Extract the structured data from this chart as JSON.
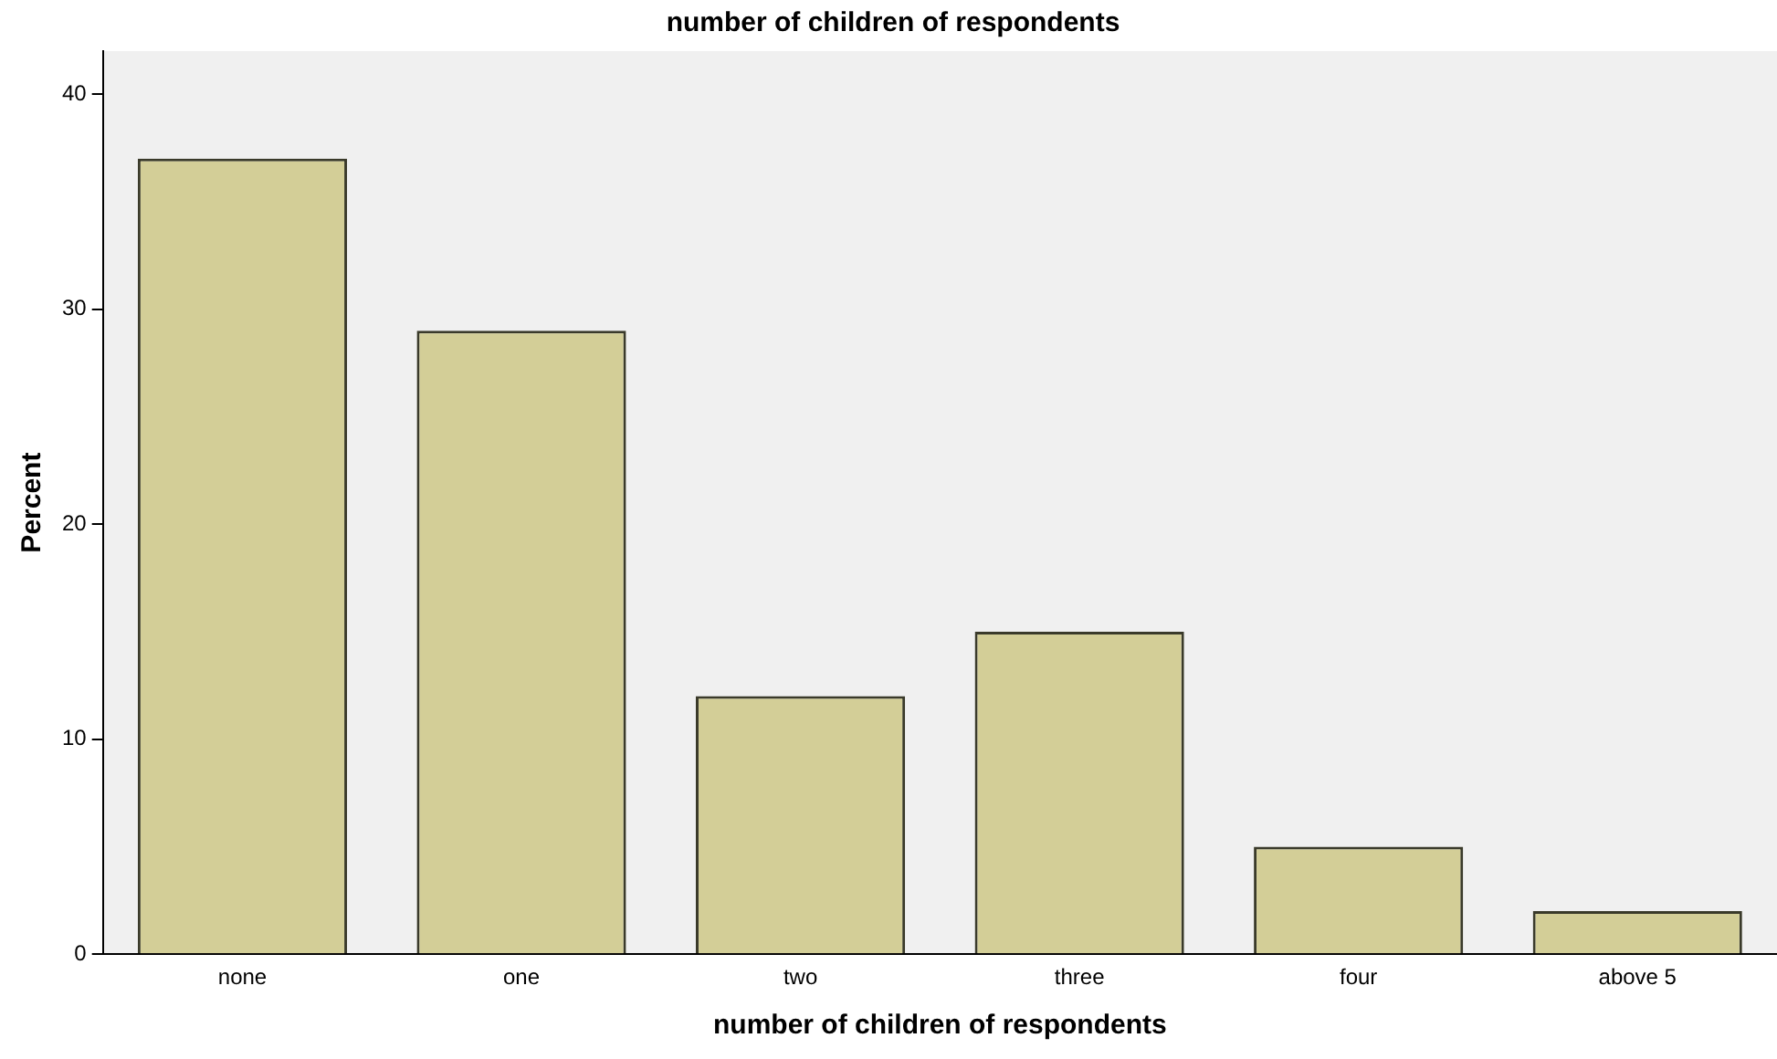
{
  "chart_data": {
    "type": "bar",
    "title": "number of children of respondents",
    "xlabel": "number of children of respondents",
    "ylabel": "Percent",
    "categories": [
      "none",
      "one",
      "two",
      "three",
      "four",
      "above 5"
    ],
    "values": [
      37,
      29,
      12,
      15,
      5,
      2
    ],
    "color": "#d3ce97",
    "ylim": [
      0,
      42
    ],
    "yticks": [
      0,
      10,
      20,
      30,
      40
    ],
    "grid": false,
    "legend": false
  }
}
